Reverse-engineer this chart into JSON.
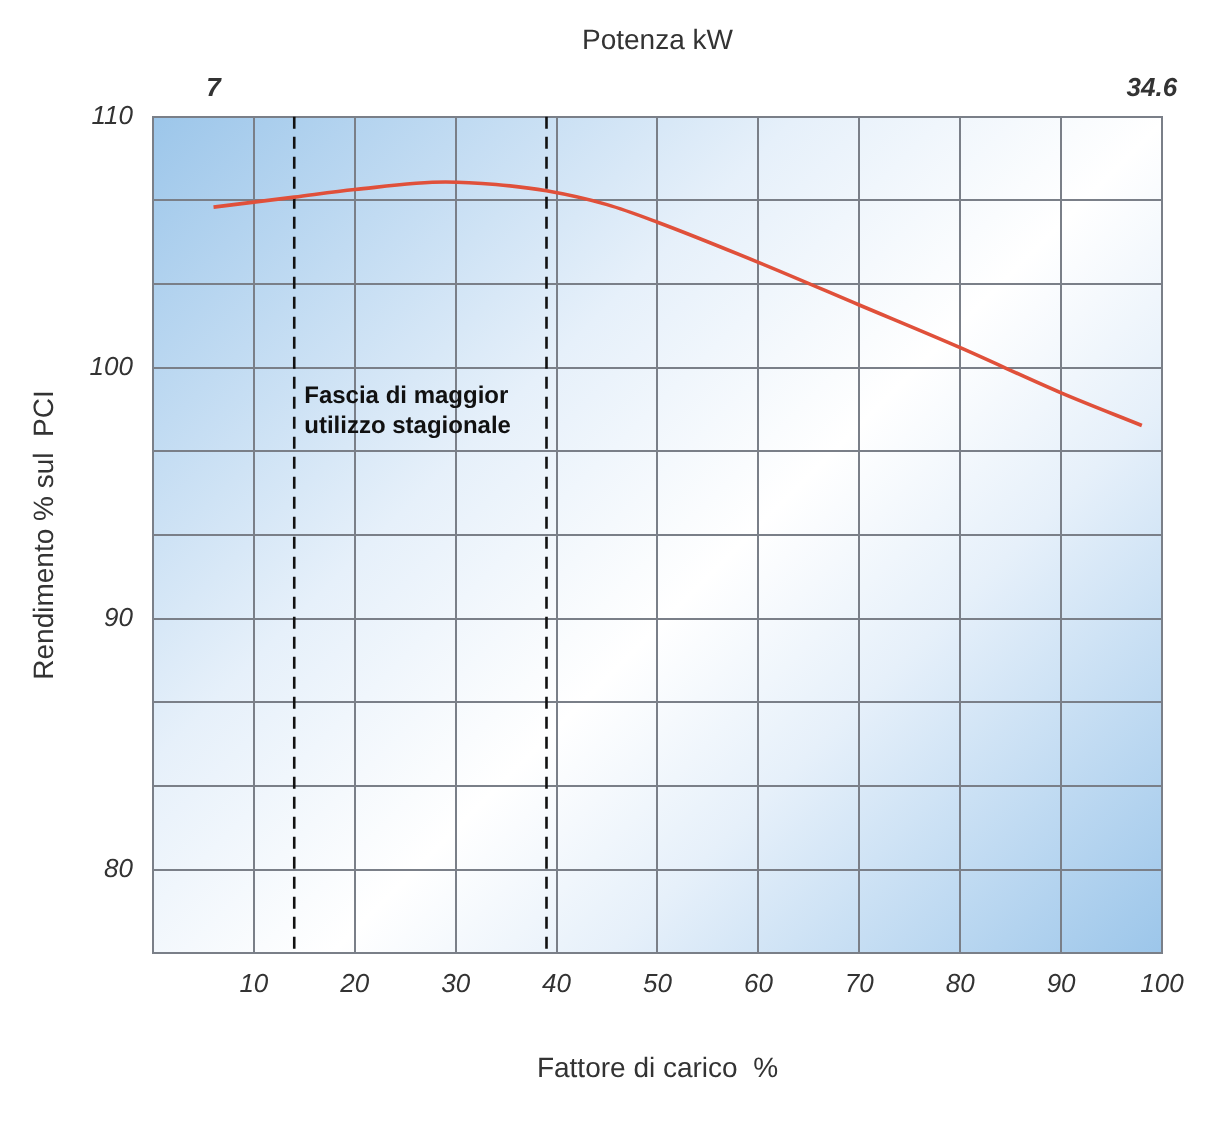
{
  "chart_data": {
    "type": "line",
    "xlabel": "Fattore di carico  %",
    "ylabel": "Rendimento % sul  PCI",
    "x2label": "Potenza kW",
    "x": [
      6,
      10,
      14,
      20,
      29,
      34,
      39,
      45,
      50,
      60,
      70,
      80,
      90,
      98
    ],
    "series": [
      {
        "color": "#e0503a",
        "values": [
          106.4,
          106.6,
          106.8,
          107.1,
          107.4,
          107.3,
          107.05,
          106.5,
          105.8,
          104.2,
          102.5,
          100.8,
          99.0,
          97.7
        ]
      }
    ],
    "xlim": [
      0,
      100
    ],
    "xticks": [
      10,
      20,
      30,
      40,
      50,
      60,
      70,
      80,
      90,
      100
    ],
    "ylim": [
      76.67,
      110
    ],
    "yticks": [
      {
        "value": 76.67,
        "label": null
      },
      {
        "value": 80,
        "label": "80"
      },
      {
        "value": 83.33,
        "label": null
      },
      {
        "value": 86.67,
        "label": null
      },
      {
        "value": 90,
        "label": "90"
      },
      {
        "value": 93.33,
        "label": null
      },
      {
        "value": 96.67,
        "label": null
      },
      {
        "value": 100,
        "label": "100"
      },
      {
        "value": 103.33,
        "label": null
      },
      {
        "value": 106.67,
        "label": null
      },
      {
        "value": 110,
        "label": "110"
      }
    ],
    "x2lim": [
      5.22,
      34.9
    ],
    "x2ticks": [
      7,
      34.6
    ],
    "ref_lines": [
      {
        "axis": "x",
        "value": 14,
        "line_style": "dashed"
      },
      {
        "axis": "x",
        "value": 39,
        "line_style": "dashed"
      }
    ],
    "annotations": [
      "Fascia di maggior utilizzo stagionale"
    ],
    "grid": true,
    "marker": "none",
    "line_style": "solid"
  }
}
